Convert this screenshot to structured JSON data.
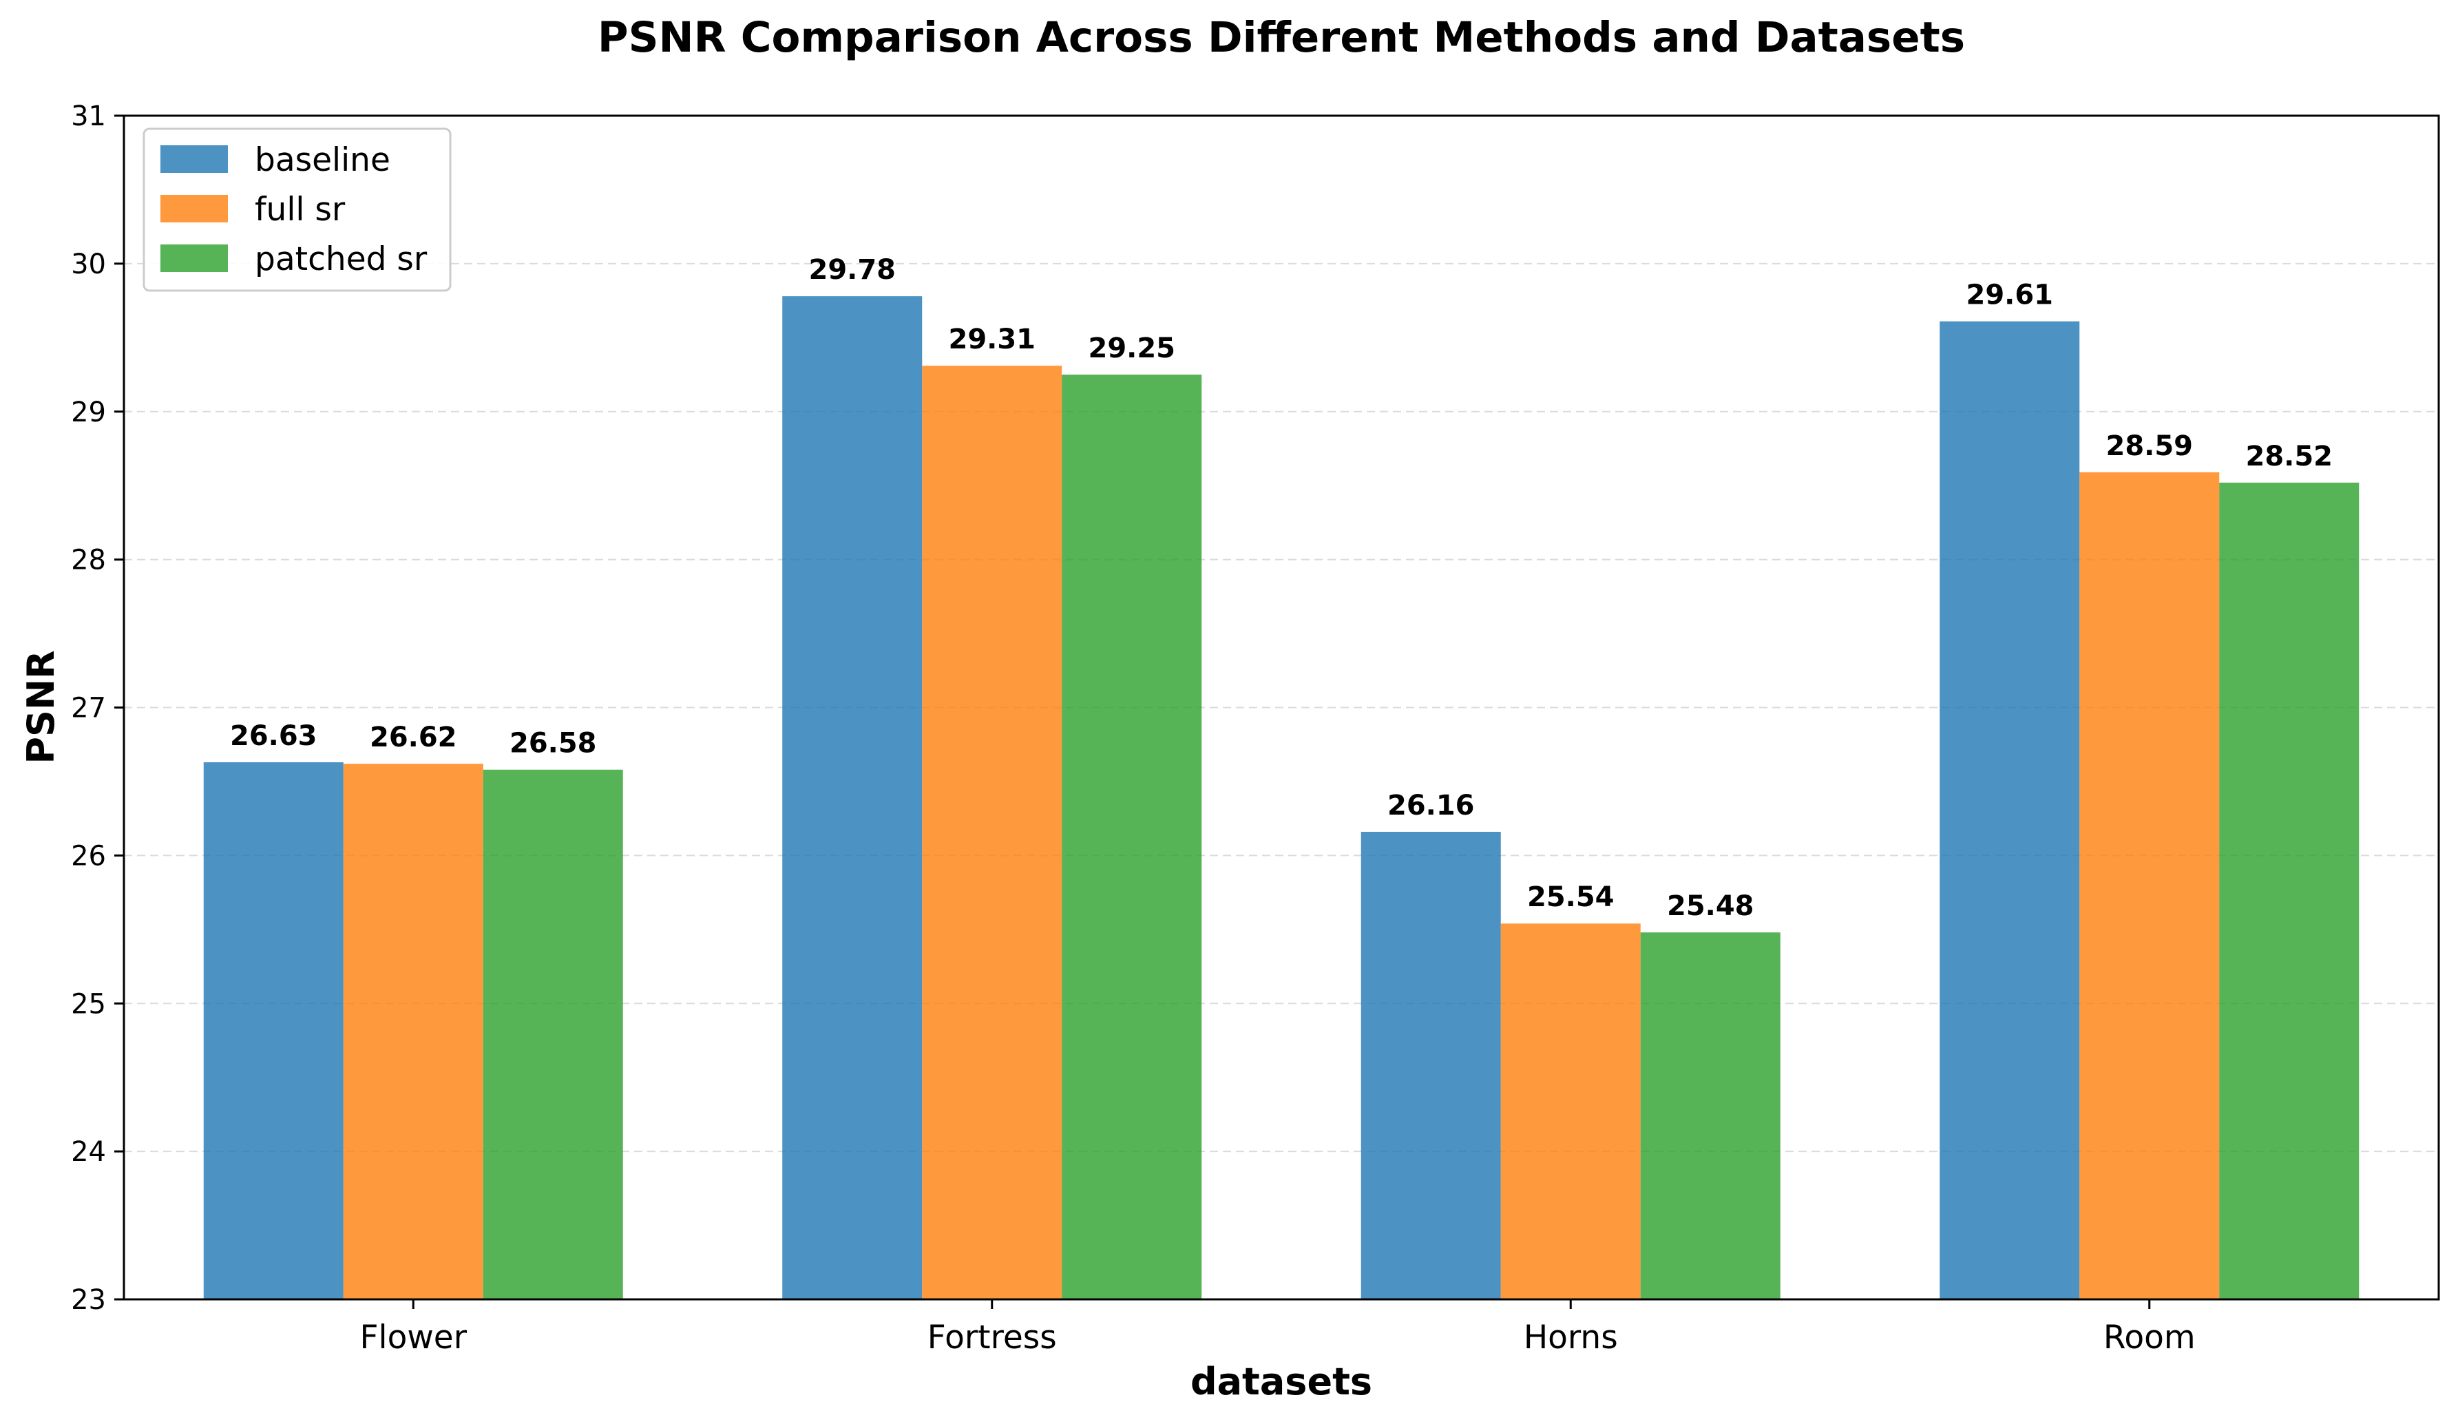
{
  "chart_data": {
    "type": "bar",
    "title": "PSNR Comparison Across Different Methods and Datasets",
    "xlabel": "datasets",
    "ylabel": "PSNR",
    "ylim": [
      23,
      31
    ],
    "yticks": [
      23,
      24,
      25,
      26,
      27,
      28,
      29,
      30,
      31
    ],
    "grid": "y-dashed",
    "legend_position": "top-left",
    "categories": [
      "Flower",
      "Fortress",
      "Horns",
      "Room"
    ],
    "series": [
      {
        "name": "baseline",
        "color": "#1f77b4",
        "values": [
          26.63,
          29.78,
          26.16,
          29.61
        ]
      },
      {
        "name": "full sr",
        "color": "#ff7f0e",
        "values": [
          26.62,
          29.31,
          25.54,
          28.59
        ]
      },
      {
        "name": "patched sr",
        "color": "#2ca02c",
        "values": [
          26.58,
          29.25,
          25.48,
          28.52
        ]
      }
    ]
  }
}
